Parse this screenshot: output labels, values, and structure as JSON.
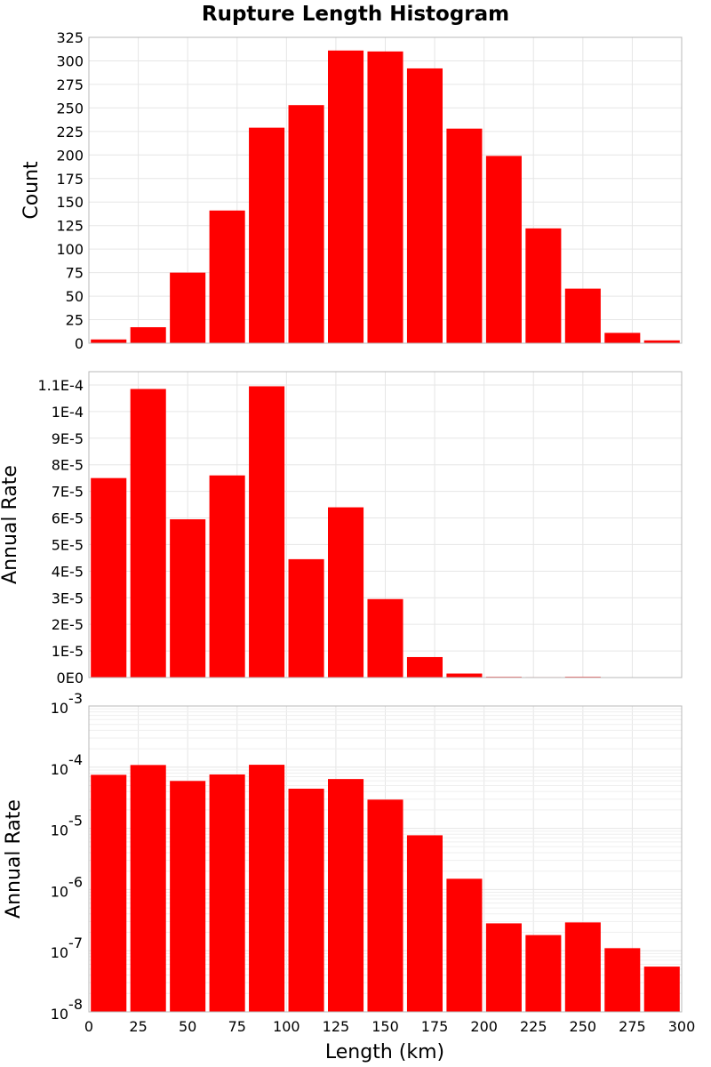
{
  "chart_data": {
    "title": "Rupture Length Histogram",
    "xlabel": "Length (km)",
    "x_ticks": [
      "0",
      "25",
      "50",
      "75",
      "100",
      "125",
      "150",
      "175",
      "200",
      "225",
      "250",
      "275",
      "300"
    ],
    "xlim": [
      0,
      300
    ],
    "bin_width": 20,
    "bin_centers": [
      10,
      30,
      50,
      70,
      90,
      110,
      130,
      150,
      170,
      190,
      210,
      230,
      250,
      270,
      290
    ],
    "bar_color": "#ff0000",
    "grid": true,
    "panels": [
      {
        "type": "bar",
        "ylabel": "Count",
        "scale": "linear",
        "ylim": [
          0,
          325
        ],
        "y_ticks": [
          "0",
          "25",
          "50",
          "75",
          "100",
          "125",
          "150",
          "175",
          "200",
          "225",
          "250",
          "275",
          "300",
          "325"
        ],
        "values": [
          4,
          17,
          75,
          141,
          229,
          253,
          311,
          310,
          292,
          228,
          199,
          122,
          58,
          11,
          3
        ]
      },
      {
        "type": "bar",
        "ylabel": "Annual Rate",
        "scale": "linear",
        "ylim": [
          0,
          0.000115
        ],
        "y_ticks": [
          "0E0",
          "1E-5",
          "2E-5",
          "3E-5",
          "4E-5",
          "5E-5",
          "6E-5",
          "7E-5",
          "8E-5",
          "9E-5",
          "1E-4",
          "1.1E-4"
        ],
        "values": [
          7.5e-05,
          0.0001085,
          5.95e-05,
          7.6e-05,
          0.0001095,
          4.45e-05,
          6.4e-05,
          2.95e-05,
          7.7e-06,
          1.5e-06,
          2.8e-07,
          1.8e-07,
          2.9e-07,
          1.1e-07,
          5.5e-08
        ]
      },
      {
        "type": "bar",
        "ylabel": "Annual Rate",
        "scale": "log",
        "ylim": [
          1e-08,
          0.001
        ],
        "y_ticks": [
          {
            "base": "10",
            "exp": "-8"
          },
          {
            "base": "10",
            "exp": "-7"
          },
          {
            "base": "10",
            "exp": "-6"
          },
          {
            "base": "10",
            "exp": "-5"
          },
          {
            "base": "10",
            "exp": "-4"
          },
          {
            "base": "10",
            "exp": "-3"
          }
        ],
        "values": [
          7.5e-05,
          0.0001085,
          5.95e-05,
          7.6e-05,
          0.0001095,
          4.45e-05,
          6.4e-05,
          2.95e-05,
          7.7e-06,
          1.5e-06,
          2.8e-07,
          1.8e-07,
          2.9e-07,
          1.1e-07,
          5.5e-08
        ]
      }
    ]
  }
}
